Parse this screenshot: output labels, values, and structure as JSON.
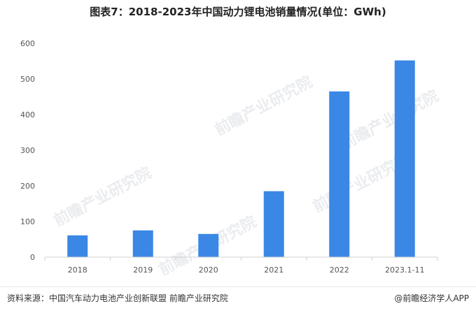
{
  "title": "图表7：2018-2023年中国动力锂电池销量情况(单位：GWh)",
  "footer": {
    "source": "资料来源：中国汽车动力电池产业创新联盟 前瞻产业研究院",
    "brand": "@前瞻经济学人APP"
  },
  "watermark": "前瞻产业研究院",
  "colors": {
    "bar": "#3a87e6",
    "axis": "#d0d0d0",
    "text": "#555555"
  },
  "chart_data": {
    "type": "bar",
    "title": "图表7：2018-2023年中国动力锂电池销量情况(单位：GWh)",
    "categories": [
      "2018",
      "2019",
      "2020",
      "2021",
      "2022",
      "2023.1-11"
    ],
    "values": [
      61,
      75,
      65,
      185,
      465,
      552
    ],
    "ylim": [
      0,
      600
    ],
    "yticks": [
      0,
      100,
      200,
      300,
      400,
      500,
      600
    ],
    "xlabel": "",
    "ylabel": "",
    "grid": false,
    "legend": "none"
  }
}
